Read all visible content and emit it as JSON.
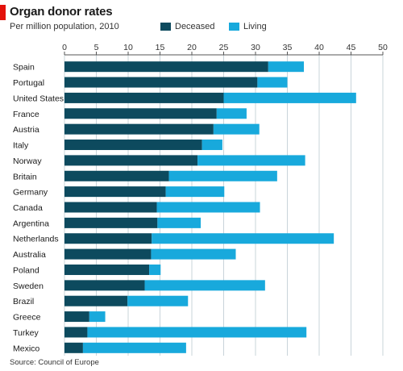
{
  "chart_data": {
    "type": "bar",
    "orientation": "horizontal",
    "stacked": true,
    "title": "Organ donor rates",
    "subtitle": "Per million population, 2010",
    "source": "Source: Council of Europe",
    "xlim": [
      0,
      50
    ],
    "xticks": [
      0,
      5,
      10,
      15,
      20,
      25,
      30,
      35,
      40,
      45,
      50
    ],
    "grid": true,
    "legend_position": "top",
    "categories": [
      "Spain",
      "Portugal",
      "United States",
      "France",
      "Austria",
      "Italy",
      "Norway",
      "Britain",
      "Germany",
      "Canada",
      "Argentina",
      "Netherlands",
      "Australia",
      "Poland",
      "Sweden",
      "Brazil",
      "Greece",
      "Turkey",
      "Mexico"
    ],
    "series": [
      {
        "name": "Deceased",
        "color": "#0d4a5e",
        "values": [
          32.0,
          30.3,
          25.0,
          23.9,
          23.4,
          21.6,
          20.9,
          16.4,
          15.9,
          14.5,
          14.6,
          13.7,
          13.6,
          13.3,
          12.6,
          9.9,
          3.9,
          3.6,
          2.9
        ]
      },
      {
        "name": "Living",
        "color": "#18a9dc",
        "values": [
          5.6,
          4.7,
          20.8,
          4.7,
          7.2,
          3.2,
          16.9,
          17.0,
          9.2,
          16.2,
          6.8,
          28.6,
          13.3,
          1.8,
          18.9,
          9.5,
          2.5,
          34.4,
          16.2
        ]
      }
    ]
  }
}
